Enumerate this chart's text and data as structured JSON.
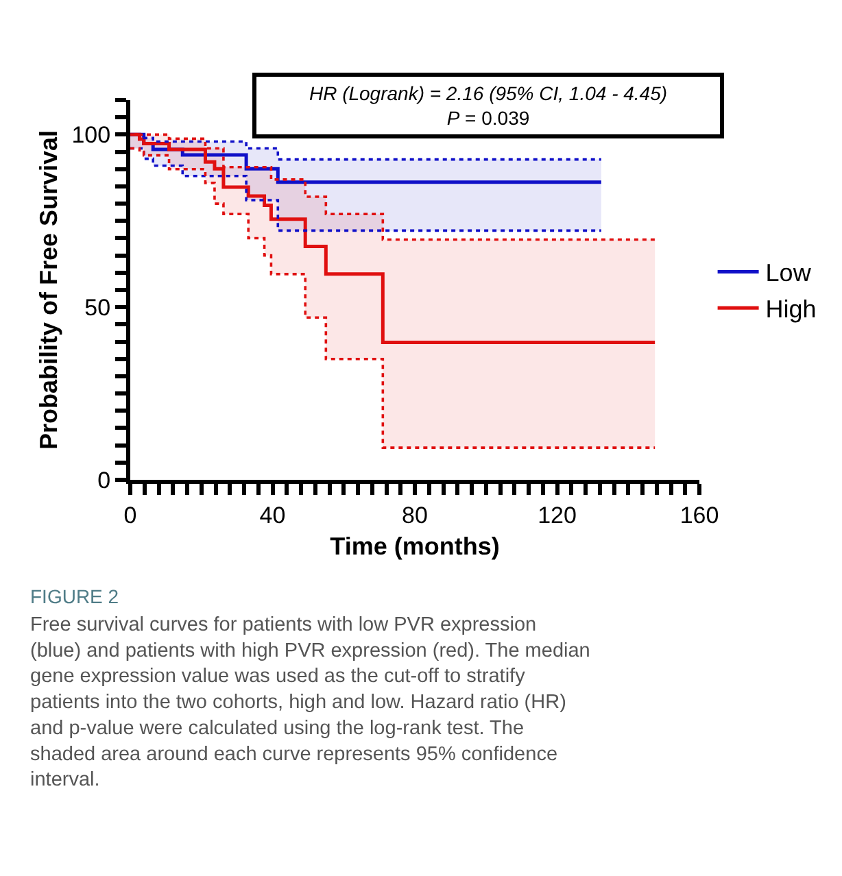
{
  "chart_data": {
    "type": "step",
    "xlabel": "Time (months)",
    "ylabel": "Probability of Free Survival",
    "xlim": [
      0,
      160
    ],
    "ylim": [
      0,
      110
    ],
    "xticks": [
      0,
      {
        "value": 4,
        "label": null
      },
      {
        "value": 8,
        "label": null
      },
      {
        "value": 12,
        "label": null
      },
      {
        "value": 16,
        "label": null
      },
      {
        "value": 20,
        "label": null
      },
      {
        "value": 24,
        "label": null
      },
      {
        "value": 28,
        "label": null
      },
      {
        "value": 32,
        "label": null
      },
      {
        "value": 36,
        "label": null
      },
      40,
      {
        "value": 44,
        "label": null
      },
      {
        "value": 48,
        "label": null
      },
      {
        "value": 52,
        "label": null
      },
      {
        "value": 56,
        "label": null
      },
      {
        "value": 60,
        "label": null
      },
      {
        "value": 64,
        "label": null
      },
      {
        "value": 68,
        "label": null
      },
      {
        "value": 72,
        "label": null
      },
      {
        "value": 76,
        "label": null
      },
      80,
      {
        "value": 84,
        "label": null
      },
      {
        "value": 88,
        "label": null
      },
      {
        "value": 92,
        "label": null
      },
      {
        "value": 96,
        "label": null
      },
      {
        "value": 100,
        "label": null
      },
      {
        "value": 104,
        "label": null
      },
      {
        "value": 108,
        "label": null
      },
      {
        "value": 112,
        "label": null
      },
      {
        "value": 116,
        "label": null
      },
      120,
      {
        "value": 124,
        "label": null
      },
      {
        "value": 128,
        "label": null
      },
      {
        "value": 132,
        "label": null
      },
      {
        "value": 136,
        "label": null
      },
      {
        "value": 140,
        "label": null
      },
      {
        "value": 144,
        "label": null
      },
      {
        "value": 148,
        "label": null
      },
      {
        "value": 152,
        "label": null
      },
      {
        "value": 156,
        "label": null
      },
      160
    ],
    "yticks": [
      0,
      {
        "value": 5,
        "label": null
      },
      {
        "value": 10,
        "label": null
      },
      {
        "value": 15,
        "label": null
      },
      {
        "value": 20,
        "label": null
      },
      {
        "value": 25,
        "label": null
      },
      {
        "value": 30,
        "label": null
      },
      {
        "value": 35,
        "label": null
      },
      {
        "value": 40,
        "label": null
      },
      {
        "value": 45,
        "label": null
      },
      50,
      {
        "value": 55,
        "label": null
      },
      {
        "value": 60,
        "label": null
      },
      {
        "value": 65,
        "label": null
      },
      {
        "value": 70,
        "label": null
      },
      {
        "value": 75,
        "label": null
      },
      {
        "value": 80,
        "label": null
      },
      {
        "value": 85,
        "label": null
      },
      {
        "value": 90,
        "label": null
      },
      {
        "value": 95,
        "label": null
      },
      100,
      {
        "value": 105,
        "label": null
      },
      {
        "value": 110,
        "label": null
      }
    ],
    "legend": "right",
    "marker": "none",
    "series": [
      {
        "name": "Low",
        "color": "#1010c8",
        "x": [
          0,
          3.8,
          6.4,
          14.7,
          32.6,
          41.5,
          132.4
        ],
        "values": [
          100,
          97.4,
          95.7,
          94.1,
          90.1,
          86.2,
          86.2
        ],
        "lower": [
          96,
          93,
          91,
          88,
          81,
          72.2,
          72.2
        ],
        "upper": [
          100,
          99,
          98,
          98,
          96,
          92.8,
          92.8
        ]
      },
      {
        "name": "High",
        "color": "#e01010",
        "x": [
          0,
          2.6,
          3.8,
          10.9,
          21.1,
          23.7,
          26.2,
          33.2,
          37.7,
          39.6,
          49.2,
          55,
          71,
          147.5
        ],
        "values": [
          100,
          98.7,
          97.4,
          95.7,
          92.1,
          90.1,
          84.8,
          82.2,
          79.5,
          75.5,
          67.6,
          59.6,
          39.8,
          39.8
        ],
        "lower": [
          96,
          95,
          94,
          90,
          86,
          80,
          77,
          70,
          65,
          59.6,
          47,
          35,
          9.3,
          9.3
        ],
        "upper": [
          100,
          100,
          100,
          98.8,
          96,
          96,
          90.6,
          90.6,
          90.6,
          87,
          82,
          77,
          69.6,
          69.6
        ]
      },
      {
        "color": "#1010c8",
        "line_style": "dotted",
        "x": [
          0,
          3.8,
          6.4,
          14.7,
          32.6,
          41.5,
          132.4
        ],
        "values": [
          96,
          93,
          91,
          88,
          81,
          72.2,
          72.2
        ]
      },
      {
        "color": "#1010c8",
        "line_style": "dotted",
        "x": [
          0,
          3.8,
          6.4,
          14.7,
          32.6,
          41.5,
          132.4
        ],
        "values": [
          100,
          99,
          98,
          98,
          96,
          92.8,
          92.8
        ]
      },
      {
        "color": "#e01010",
        "line_style": "dotted",
        "x": [
          0,
          2.6,
          3.8,
          10.9,
          21.1,
          23.7,
          26.2,
          33.2,
          37.7,
          39.6,
          49.2,
          55,
          71,
          147.5
        ],
        "values": [
          96,
          95,
          94,
          90,
          86,
          80,
          77,
          70,
          65,
          59.6,
          47,
          35,
          9.3,
          9.3
        ]
      },
      {
        "color": "#e01010",
        "line_style": "dotted",
        "x": [
          0,
          2.6,
          3.8,
          10.9,
          21.1,
          23.7,
          26.2,
          33.2,
          37.7,
          39.6,
          49.2,
          55,
          71,
          147.5
        ],
        "values": [
          100,
          100,
          100,
          98.8,
          96,
          96,
          90.6,
          90.6,
          90.6,
          87,
          82,
          77,
          69.6,
          69.6
        ]
      }
    ],
    "annotations": [
      "HR (Logrank) = 2.16 (95% CI, 1.04 - 4.45)",
      "P = 0.039",
      "FIGURE 2",
      "Free survival curves for patients with low PVR expression (blue) and patients with high PVR expression (red). The median gene expression value was used as the cut-off to stratify patients into the two cohorts, high and low. Hazard ratio (HR) and p-value were calculated using the log-rank test. The shaded area around each curve represents 95% confidence interval."
    ]
  }
}
